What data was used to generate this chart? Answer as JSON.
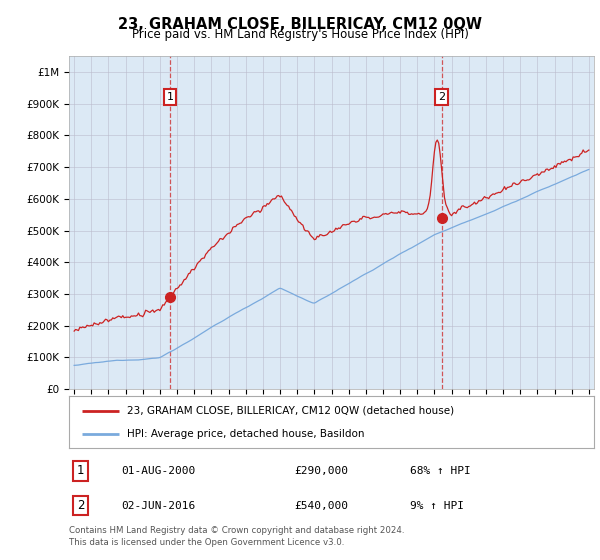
{
  "title": "23, GRAHAM CLOSE, BILLERICAY, CM12 0QW",
  "subtitle": "Price paid vs. HM Land Registry's House Price Index (HPI)",
  "legend_line1": "23, GRAHAM CLOSE, BILLERICAY, CM12 0QW (detached house)",
  "legend_line2": "HPI: Average price, detached house, Basildon",
  "sale1_year": 2000.58,
  "sale1_price": 290000,
  "sale2_year": 2016.42,
  "sale2_price": 540000,
  "footnote": "Contains HM Land Registry data © Crown copyright and database right 2024.\nThis data is licensed under the Open Government Licence v3.0.",
  "red_color": "#cc2222",
  "blue_color": "#7aaadd",
  "bg_color": "#dce9f5",
  "plot_bg": "#ffffff",
  "ylim_max": 1050000,
  "yticks": [
    0,
    100000,
    200000,
    300000,
    400000,
    500000,
    600000,
    700000,
    800000,
    900000,
    1000000
  ],
  "ytick_labels": [
    "£0",
    "£100K",
    "£200K",
    "£300K",
    "£400K",
    "£500K",
    "£600K",
    "£700K",
    "£800K",
    "£900K",
    "£1M"
  ],
  "xstart": 1995,
  "xend": 2025
}
